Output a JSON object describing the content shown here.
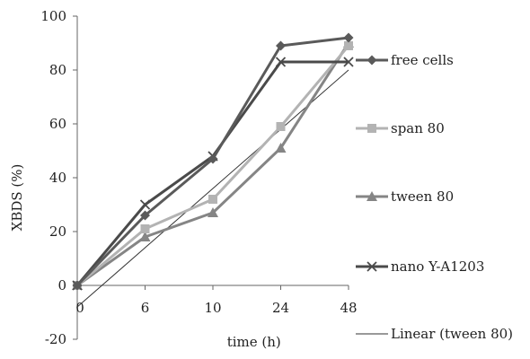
{
  "chart_data": {
    "type": "line",
    "title": "",
    "xlabel": "time (h)",
    "ylabel": "XBDS (%)",
    "categories": [
      "0",
      "6",
      "10",
      "24",
      "48"
    ],
    "ylim": [
      -20,
      100
    ],
    "yticks": [
      "-20",
      "0",
      "20",
      "40",
      "60",
      "80",
      "100"
    ],
    "grid": false,
    "legend_position": "right",
    "series": [
      {
        "name": "free cells",
        "marker": "diamond",
        "color": "#5a5a5a",
        "values": [
          0,
          26,
          47,
          89,
          92
        ]
      },
      {
        "name": "span 80",
        "marker": "square",
        "color": "#b3b3b3",
        "values": [
          0,
          21,
          32,
          59,
          89
        ]
      },
      {
        "name": "tween 80",
        "marker": "triangle",
        "color": "#858585",
        "values": [
          0,
          18,
          27,
          51,
          90
        ]
      },
      {
        "name": "nano Y-A1203",
        "marker": "x",
        "color": "#4a4a4a",
        "values": [
          0,
          30,
          48,
          83,
          83
        ]
      }
    ],
    "trendline": {
      "name": "Linear (tween 80)",
      "color": "#333333",
      "values": [
        -8,
        14,
        36,
        58,
        80
      ]
    }
  }
}
